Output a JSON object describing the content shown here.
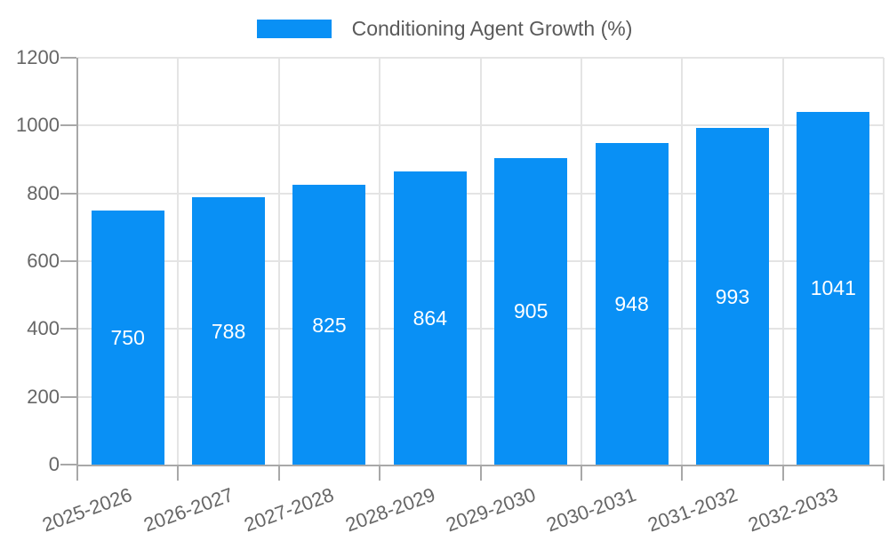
{
  "legend": {
    "label": "Conditioning Agent Growth (%)"
  },
  "chart_data": {
    "type": "bar",
    "title": "Conditioning Agent Growth (%)",
    "categories": [
      "2025-2026",
      "2026-2027",
      "2027-2028",
      "2028-2029",
      "2029-2030",
      "2030-2031",
      "2031-2032",
      "2032-2033"
    ],
    "values": [
      750,
      788,
      825,
      864,
      905,
      948,
      993,
      1041
    ],
    "xlabel": "",
    "ylabel": "",
    "ylim": [
      0,
      1200
    ],
    "yticks": [
      0,
      200,
      400,
      600,
      800,
      1000,
      1200
    ],
    "grid": true,
    "legend_position": "top-center",
    "bar_color": "#0990f5",
    "value_label_color": "#ffffff",
    "grid_color": "#e4e4e4",
    "axis_color": "#a8a8a8",
    "tick_label_color": "#666666",
    "legend_text_color": "#5a5a5a"
  }
}
